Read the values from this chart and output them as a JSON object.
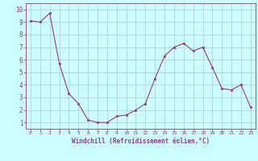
{
  "x": [
    0,
    1,
    2,
    3,
    4,
    5,
    6,
    7,
    8,
    9,
    10,
    11,
    12,
    13,
    14,
    15,
    16,
    17,
    18,
    19,
    20,
    21,
    22,
    23
  ],
  "y": [
    9.1,
    9.0,
    9.7,
    5.7,
    3.3,
    2.5,
    1.2,
    1.0,
    1.0,
    1.5,
    1.6,
    2.0,
    2.5,
    4.5,
    6.3,
    7.0,
    7.3,
    6.7,
    7.0,
    5.4,
    3.7,
    3.6,
    4.0,
    2.2
  ],
  "line_color": "#993399",
  "marker": "s",
  "marker_size": 2,
  "bg_color": "#ccffff",
  "grid_color": "#aacccc",
  "xlabel": "Windchill (Refroidissement éolien,°C)",
  "xlabel_color": "#993399",
  "tick_color": "#993399",
  "ylabel_ticks": [
    1,
    2,
    3,
    4,
    5,
    6,
    7,
    8,
    9,
    10
  ],
  "xlim": [
    -0.5,
    23.5
  ],
  "ylim": [
    0.5,
    10.5
  ],
  "xticks": [
    0,
    1,
    2,
    3,
    4,
    5,
    6,
    7,
    8,
    9,
    10,
    11,
    12,
    13,
    14,
    15,
    16,
    17,
    18,
    19,
    20,
    21,
    22,
    23
  ]
}
